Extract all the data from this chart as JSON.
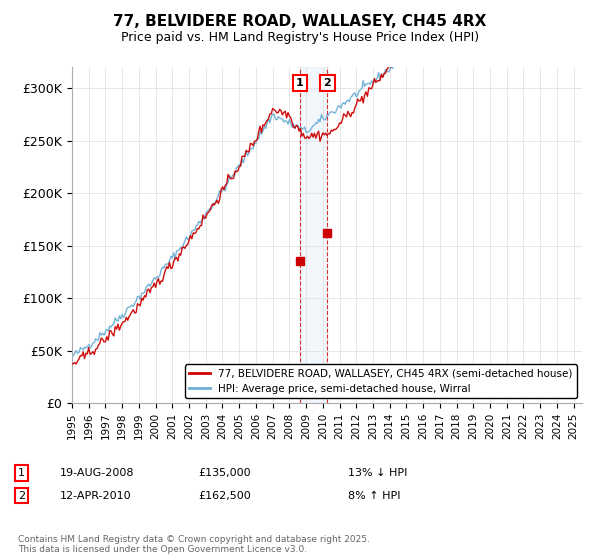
{
  "title": "77, BELVIDERE ROAD, WALLASEY, CH45 4RX",
  "subtitle": "Price paid vs. HM Land Registry's House Price Index (HPI)",
  "ylim": [
    0,
    320000
  ],
  "yticks": [
    0,
    50000,
    100000,
    150000,
    200000,
    250000,
    300000
  ],
  "ytick_labels": [
    "£0",
    "£50K",
    "£100K",
    "£150K",
    "£200K",
    "£250K",
    "£300K"
  ],
  "hpi_color": "#6daed4",
  "price_color": "#cc0000",
  "annotation_fill": "#cce0f0",
  "annotation_line": "#cc0000",
  "legend_label_price": "77, BELVIDERE ROAD, WALLASEY, CH45 4RX (semi-detached house)",
  "legend_label_hpi": "HPI: Average price, semi-detached house, Wirral",
  "transaction1_date": "19-AUG-2008",
  "transaction1_price": "£135,000",
  "transaction1_hpi": "13% ↓ HPI",
  "transaction2_date": "12-APR-2010",
  "transaction2_price": "£162,500",
  "transaction2_hpi": "8% ↑ HPI",
  "footer": "Contains HM Land Registry data © Crown copyright and database right 2025.\nThis data is licensed under the Open Government Licence v3.0."
}
